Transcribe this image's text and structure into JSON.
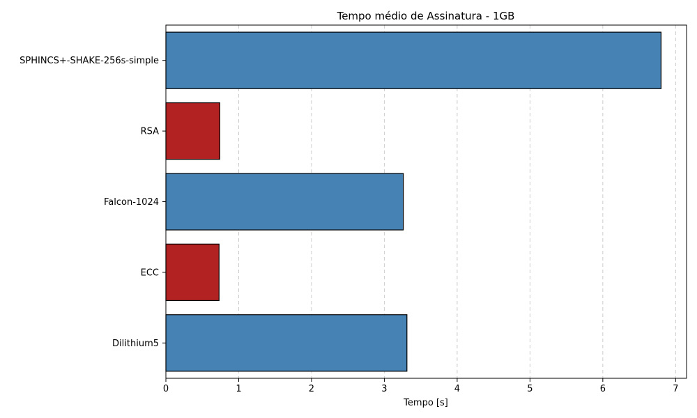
{
  "chart_data": {
    "type": "bar",
    "orientation": "horizontal",
    "title": "Tempo médio de Assinatura - 1GB",
    "xlabel": "Tempo [s]",
    "ylabel": "",
    "categories": [
      "SPHINCS+-SHAKE-256s-simple",
      "RSA",
      "Falcon-1024",
      "ECC",
      "Dilithium5"
    ],
    "values": [
      6.8,
      0.74,
      3.26,
      0.73,
      3.31
    ],
    "bar_colors": [
      "#4682b4",
      "#b22222",
      "#4682b4",
      "#b22222",
      "#4682b4"
    ],
    "edge_color": "#000000",
    "xlim": [
      0,
      7.15
    ],
    "xticks": [
      "0",
      "1",
      "2",
      "3",
      "4",
      "5",
      "6",
      "7"
    ],
    "grid": "x-dashed"
  }
}
